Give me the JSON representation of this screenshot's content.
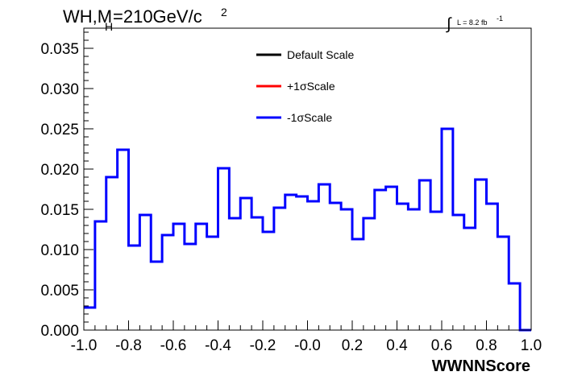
{
  "chart_data": {
    "type": "histogram",
    "title_main": "WH,M",
    "title_sub": "H",
    "title_rest": "=210GeV/c",
    "title_sup": "2",
    "lumi_integral": "∫",
    "lumi_text": "L = 8.2 fb",
    "lumi_sup": "-1",
    "xlabel": "WWNNScore",
    "xlim": [
      -1.0,
      1.0
    ],
    "ylim": [
      0.0,
      0.0375
    ],
    "x_ticks": [
      -1.0,
      -0.8,
      -0.6,
      -0.4,
      -0.2,
      0.0,
      0.2,
      0.4,
      0.6,
      0.8,
      1.0
    ],
    "x_tick_labels": [
      "-1.0",
      "-0.8",
      "-0.6",
      "-0.4",
      "-0.2",
      "-0.0",
      "0.2",
      "0.4",
      "0.6",
      "0.8",
      "1.0"
    ],
    "y_ticks": [
      0.0,
      0.005,
      0.01,
      0.015,
      0.02,
      0.025,
      0.03,
      0.035
    ],
    "y_tick_labels": [
      "0.000",
      "0.005",
      "0.010",
      "0.015",
      "0.020",
      "0.025",
      "0.030",
      "0.035"
    ],
    "bin_edges_start": -1.0,
    "bin_width": 0.05,
    "legend": {
      "placement": "top-center",
      "entries": [
        {
          "label": "Default Scale",
          "color": "#000000"
        },
        {
          "label": "+1σScale",
          "color": "#ff0000"
        },
        {
          "label": "-1σScale",
          "color": "#0000ff"
        }
      ]
    },
    "series": [
      {
        "name": "-1σScale",
        "color": "#0000ff",
        "values": [
          0.0028,
          0.0135,
          0.019,
          0.0224,
          0.0105,
          0.0143,
          0.0085,
          0.0118,
          0.0132,
          0.0107,
          0.0132,
          0.0116,
          0.0201,
          0.0139,
          0.0164,
          0.014,
          0.0122,
          0.0152,
          0.0168,
          0.0166,
          0.016,
          0.0181,
          0.0158,
          0.015,
          0.0113,
          0.0139,
          0.0174,
          0.0178,
          0.0157,
          0.015,
          0.0186,
          0.0147,
          0.025,
          0.0143,
          0.0127,
          0.0187,
          0.0157,
          0.0116,
          0.0058,
          0.0
        ]
      }
    ]
  }
}
